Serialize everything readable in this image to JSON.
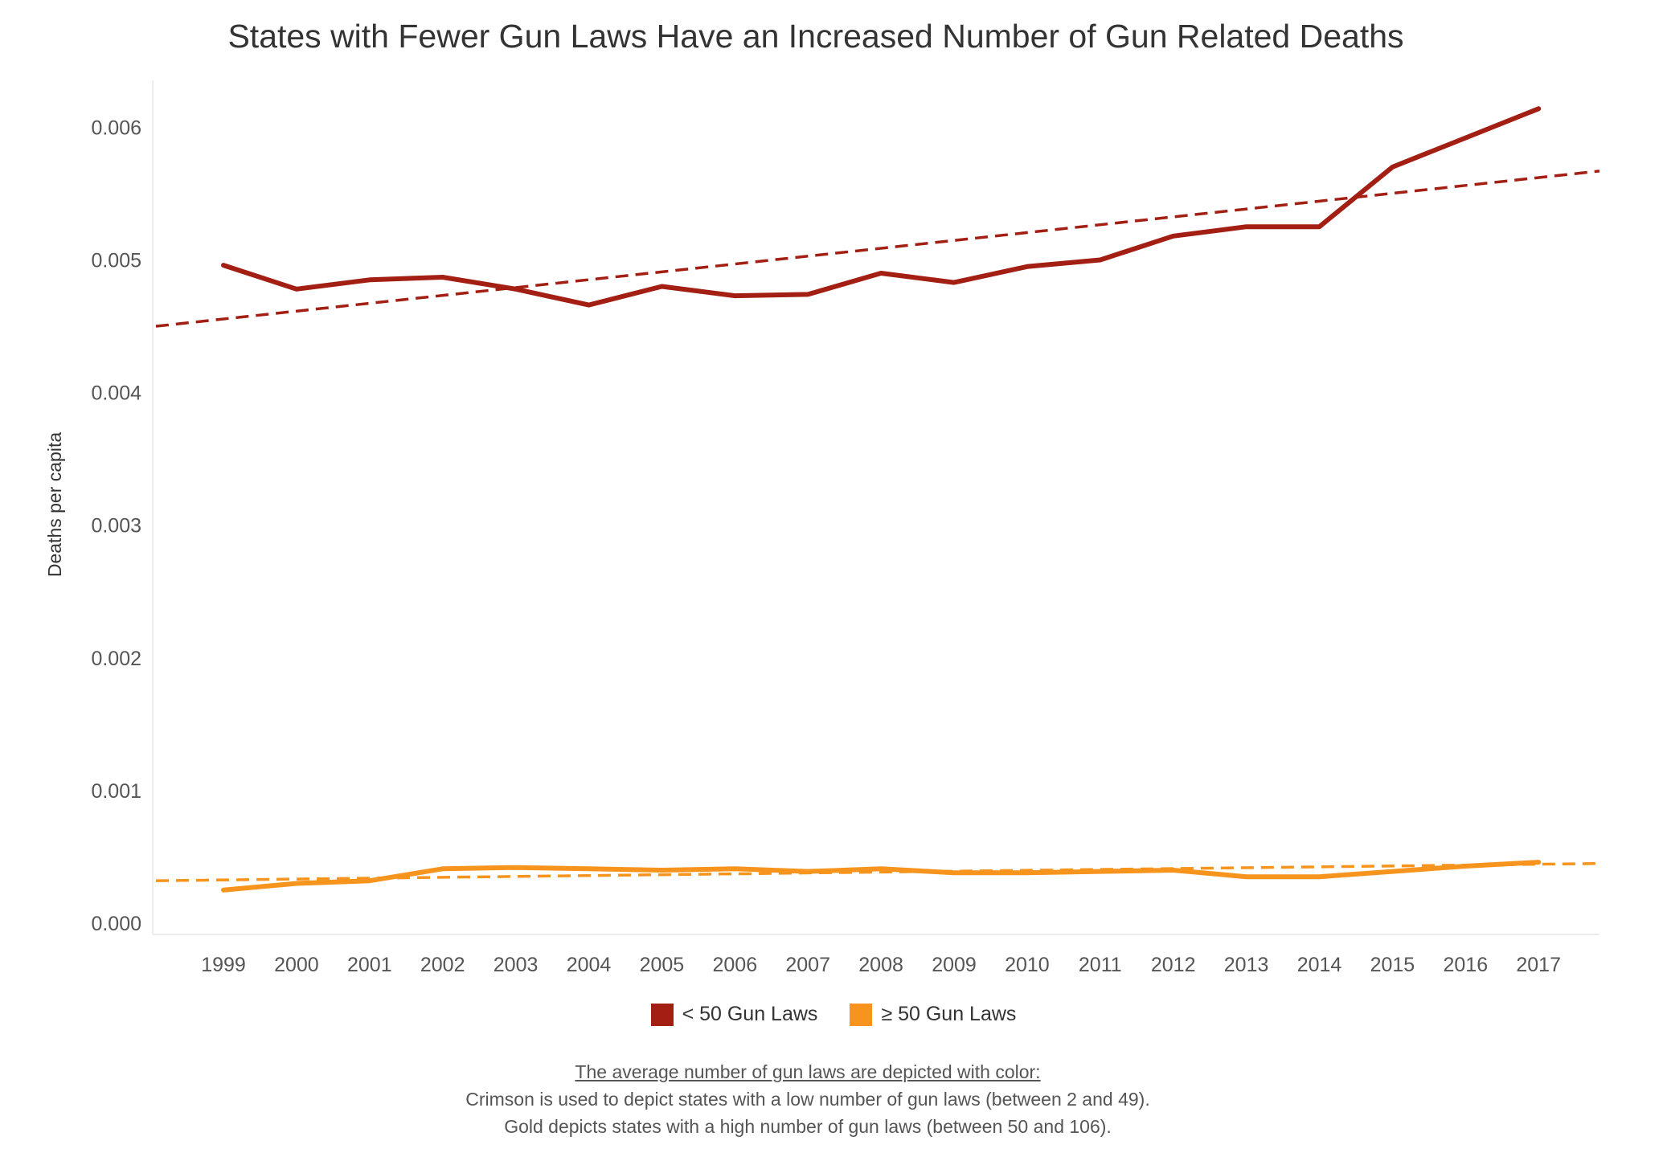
{
  "chart_data": {
    "type": "line",
    "title": "States with Fewer Gun Laws Have an Increased Number of Gun Related Deaths",
    "xlabel": "",
    "ylabel": "Deaths per capita",
    "categories": [
      "1999",
      "2000",
      "2001",
      "2002",
      "2003",
      "2004",
      "2005",
      "2006",
      "2007",
      "2008",
      "2009",
      "2010",
      "2011",
      "2012",
      "2013",
      "2014",
      "2015",
      "2016",
      "2017"
    ],
    "ylim": [
      0,
      0.0065
    ],
    "yticks": [
      "0.000",
      "0.001",
      "0.002",
      "0.003",
      "0.004",
      "0.005",
      "0.006"
    ],
    "grid": false,
    "legend_position": "bottom-center",
    "series": [
      {
        "name": "< 50 Gun Laws",
        "color": "#a31f14",
        "values": [
          0.00496,
          0.00478,
          0.00485,
          0.00487,
          0.00478,
          0.00466,
          0.0048,
          0.00473,
          0.00474,
          0.0049,
          0.00483,
          0.00495,
          0.005,
          0.00518,
          0.00525,
          0.00525,
          0.0057,
          0.00592,
          0.00614
        ],
        "trend": [
          0.0045,
          0.00567
        ]
      },
      {
        "name": "≥ 50 Gun Laws",
        "color": "#f7941e",
        "values": [
          0.00025,
          0.0003,
          0.00032,
          0.00041,
          0.00042,
          0.00041,
          0.0004,
          0.00041,
          0.00039,
          0.00041,
          0.00038,
          0.00038,
          0.00039,
          0.0004,
          0.00035,
          0.00035,
          0.00039,
          0.00043,
          0.00046
        ],
        "trend": [
          0.00032,
          0.00045
        ]
      }
    ]
  },
  "notes": {
    "heading": "The average number of gun laws are depicted with color:",
    "line1": "Crimson is used to depict states with a low number of gun laws (between 2 and 49).",
    "line2": "Gold depicts states with a high number of gun laws (between 50 and 106)."
  }
}
